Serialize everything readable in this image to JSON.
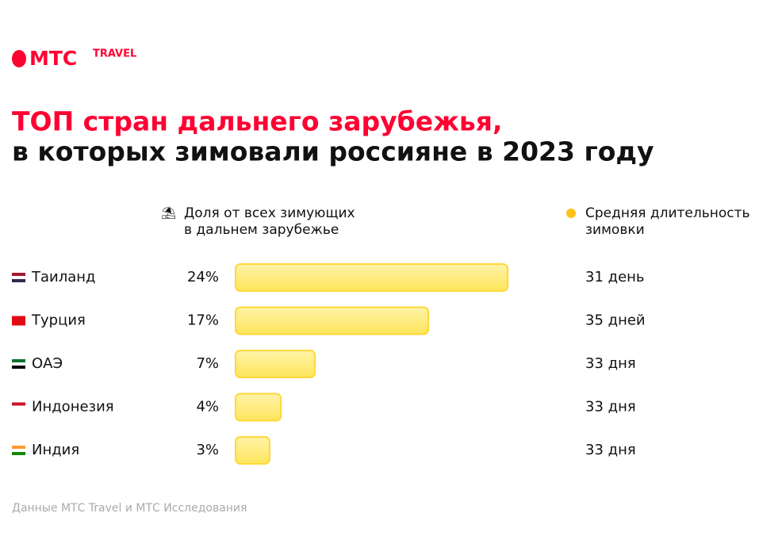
{
  "logo": {
    "brand": "МТС",
    "sub": "TRAVEL"
  },
  "chart_data": {
    "type": "bar",
    "title": [
      "ТОП стран дальнего зарубежья,",
      "в которых зимовали россияне в 2023 году"
    ],
    "value_header": [
      "Доля от всех зимующих",
      "в дальнем зарубежье"
    ],
    "duration_header": [
      "Средняя длительность",
      "зимовки"
    ],
    "categories": [
      "Таиланд",
      "Турция",
      "ОАЭ",
      "Индонезия",
      "Индия"
    ],
    "values": [
      24,
      17,
      7,
      4,
      3
    ],
    "value_labels": [
      "24%",
      "17%",
      "7%",
      "4%",
      "3%"
    ],
    "durations": [
      "31 день",
      "35 дней",
      "33 дня",
      "33 дня",
      "33 дня"
    ],
    "color": "#ffe86a",
    "source": "Данные МТС Travel и МТС Исследования"
  }
}
